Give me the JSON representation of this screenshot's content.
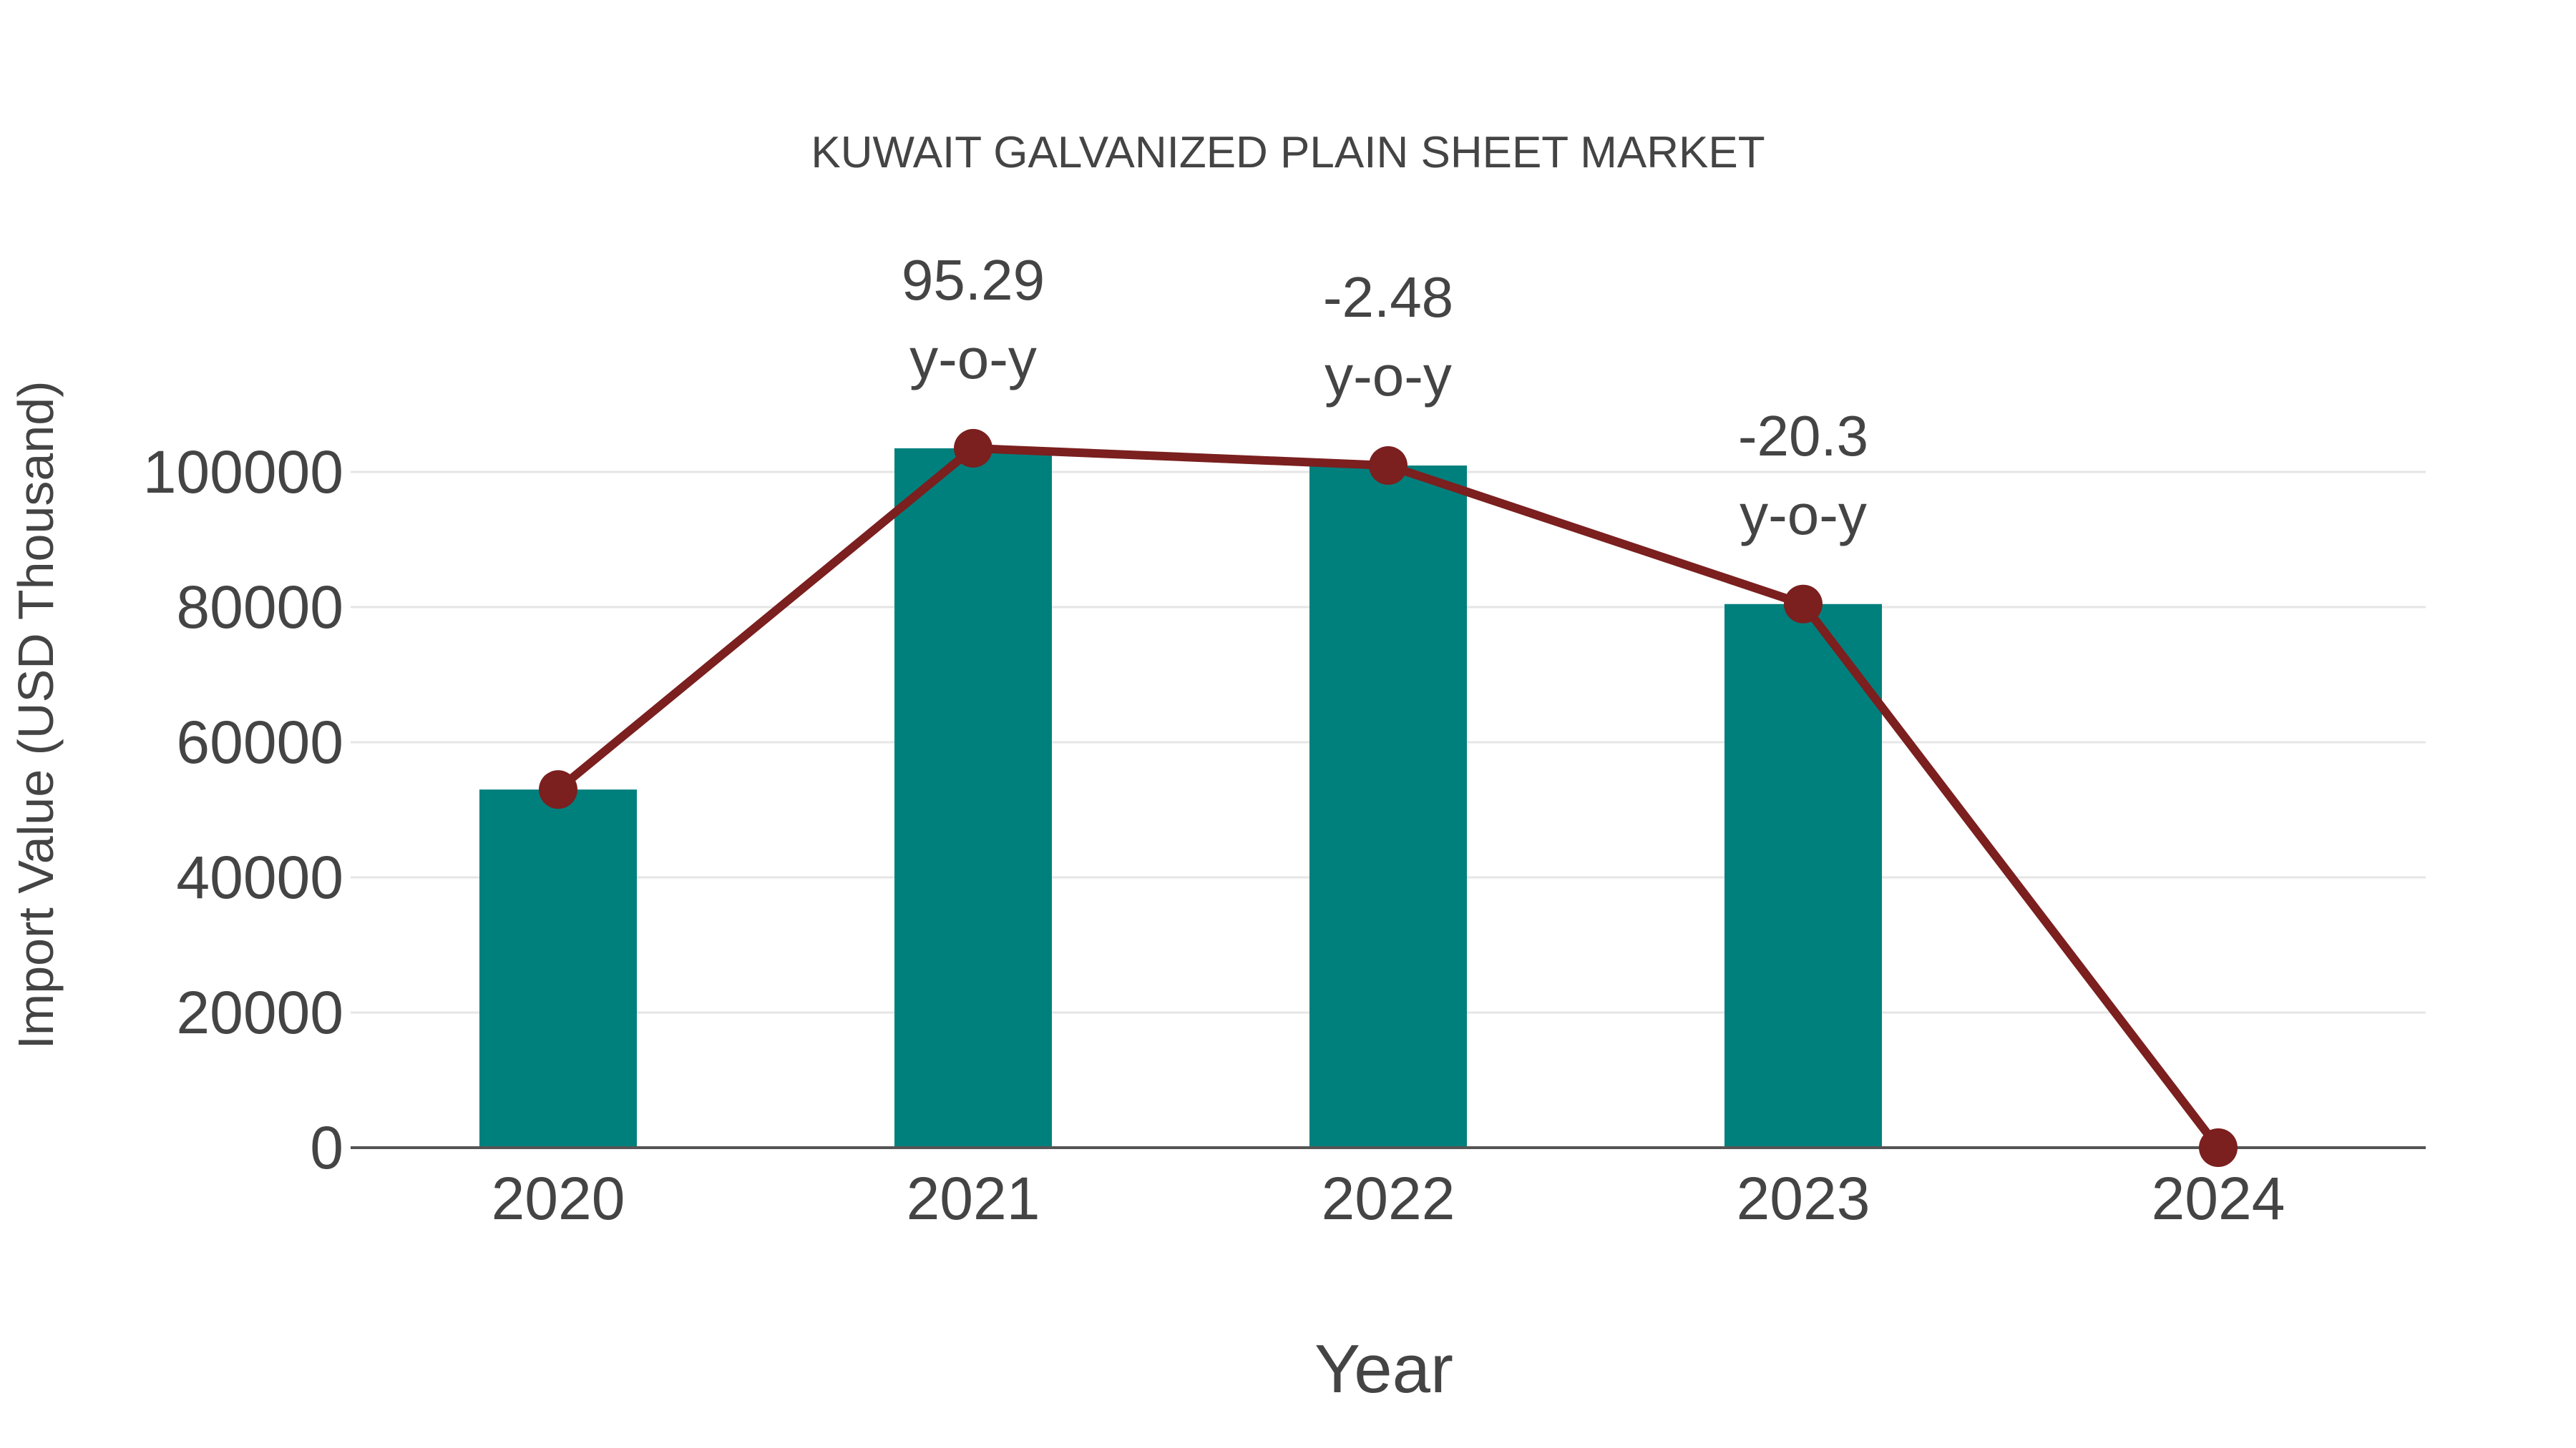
{
  "chart_data": {
    "type": "bar",
    "title": "KUWAIT GALVANIZED PLAIN SHEET MARKET",
    "xlabel": "Year",
    "ylabel": "Import Value (USD Thousand)",
    "categories": [
      "2020",
      "2021",
      "2022",
      "2023",
      "2024"
    ],
    "ylim": [
      0,
      110000
    ],
    "yticks": [
      0,
      20000,
      40000,
      60000,
      80000,
      100000
    ],
    "grid": true,
    "series": [
      {
        "name": "Import Value (bars)",
        "type": "bar",
        "color": "#00807D",
        "values": [
          53000,
          103500,
          100950,
          80450,
          null
        ]
      },
      {
        "name": "Import Value (line)",
        "type": "line",
        "color": "#7B1F1F",
        "values": [
          53000,
          103500,
          100950,
          80450,
          0
        ]
      }
    ],
    "annotations": [
      {
        "category": "2021",
        "value": "95.29",
        "suffix": "y-o-y"
      },
      {
        "category": "2022",
        "value": "-2.48",
        "suffix": "y-o-y"
      },
      {
        "category": "2023",
        "value": "-20.3",
        "suffix": "y-o-y"
      }
    ]
  },
  "labels": {
    "title": "KUWAIT GALVANIZED PLAIN SHEET MARKET",
    "xlabel": "Year",
    "ylabel": "Import Value (USD Thousand)",
    "yticks": [
      "0",
      "20000",
      "40000",
      "60000",
      "80000",
      "100000"
    ],
    "xticks": [
      "2020",
      "2021",
      "2022",
      "2023",
      "2024"
    ],
    "annotations": [
      {
        "value": "95.29",
        "suffix": "y-o-y"
      },
      {
        "value": "-2.48",
        "suffix": "y-o-y"
      },
      {
        "value": "-20.3",
        "suffix": "y-o-y"
      }
    ]
  },
  "colors": {
    "bar": "#00807D",
    "line": "#7B1F1F",
    "grid": "#E6E6E6",
    "axis": "#555555",
    "text": "#444444"
  }
}
